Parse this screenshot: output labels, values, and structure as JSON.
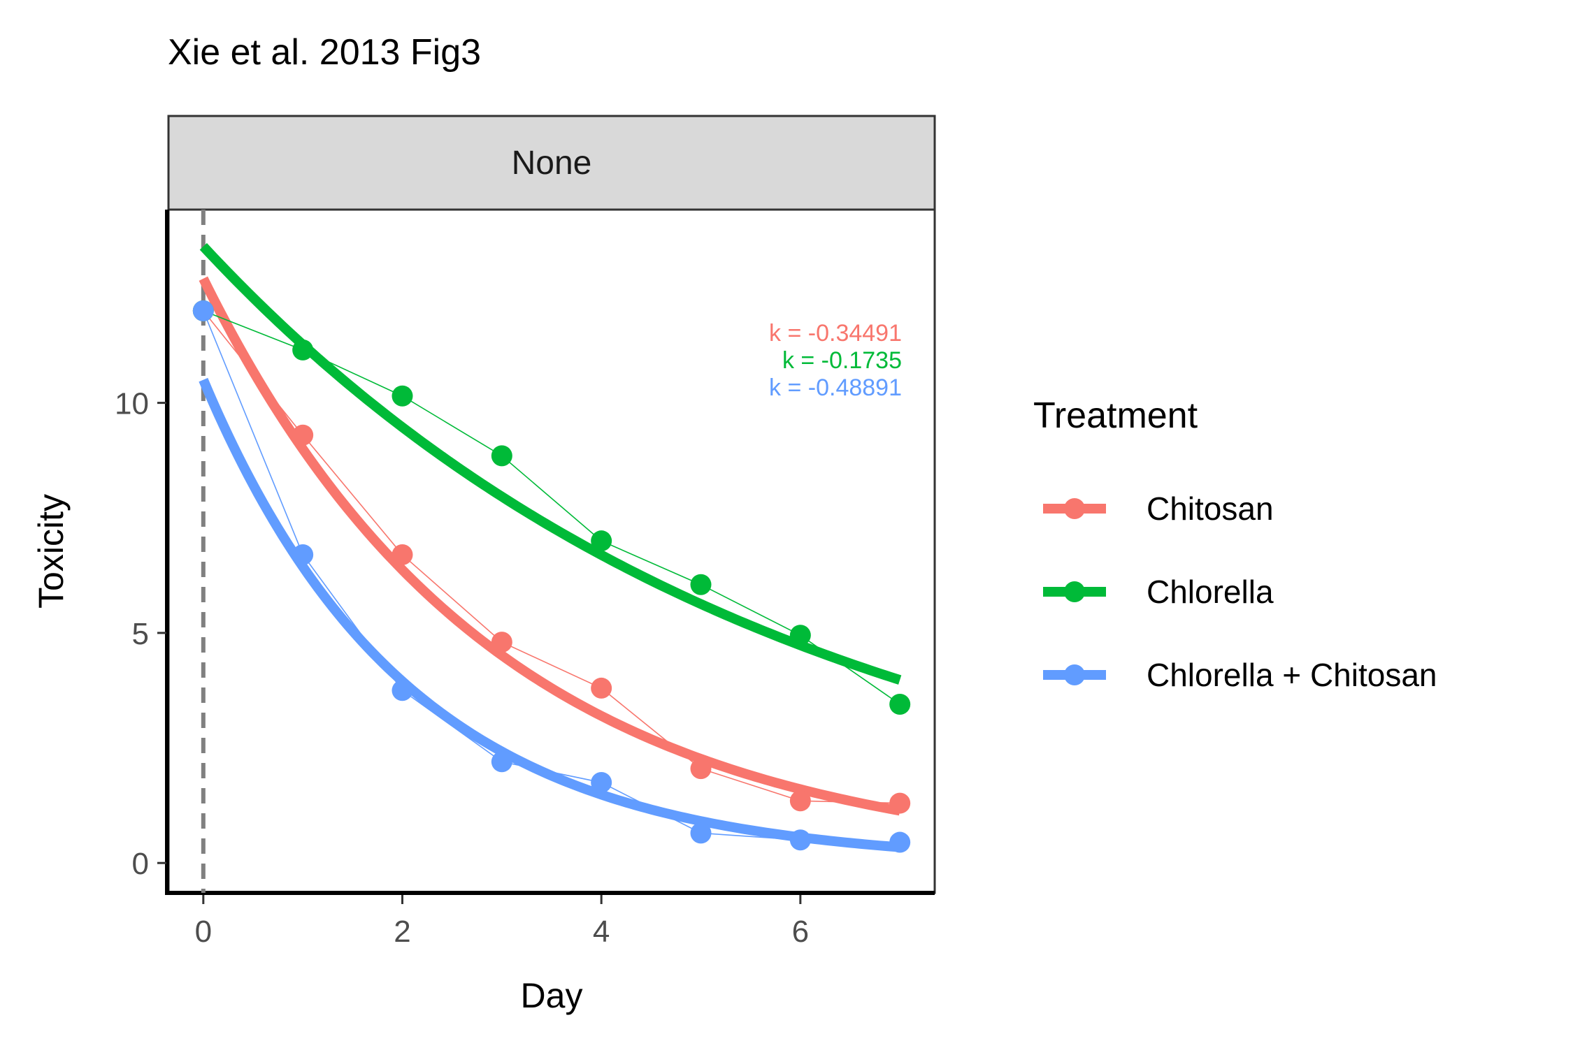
{
  "chart_data": {
    "type": "line",
    "title": "Xie et al. 2013 Fig3",
    "facet_label": "None",
    "xlabel": "Day",
    "ylabel": "Toxicity",
    "xlim": [
      -0.35,
      7.35
    ],
    "ylim": [
      -0.65,
      14.2
    ],
    "x_ticks": [
      0,
      2,
      4,
      6
    ],
    "x_tick_labels": [
      "0",
      "2",
      "4",
      "6"
    ],
    "y_ticks": [
      0,
      5,
      10
    ],
    "y_tick_labels": [
      "0",
      "5",
      "10"
    ],
    "grid": false,
    "legend": {
      "title": "Treatment",
      "position": "right"
    },
    "reference_line": {
      "x": 0,
      "style": "dashed",
      "color": "#808080"
    },
    "series": [
      {
        "name": "Chitosan",
        "color": "#F8766D",
        "x": [
          0,
          1,
          2,
          3,
          4,
          5,
          6,
          7
        ],
        "y": [
          12.0,
          9.3,
          6.7,
          4.8,
          3.8,
          2.05,
          1.35,
          1.3
        ],
        "fit": {
          "a": 12.7,
          "k": -0.34491,
          "label": "k = -0.34491"
        }
      },
      {
        "name": "Chlorella",
        "color": "#00BA38",
        "x": [
          0,
          1,
          2,
          3,
          4,
          5,
          6,
          7
        ],
        "y": [
          12.0,
          11.15,
          10.15,
          8.85,
          7.0,
          6.05,
          4.95,
          3.45
        ],
        "fit": {
          "a": 13.4,
          "k": -0.1735,
          "label": "k = -0.1735"
        }
      },
      {
        "name": "Chlorella + Chitosan",
        "color": "#619CFF",
        "x": [
          0,
          1,
          2,
          3,
          4,
          5,
          6,
          7
        ],
        "y": [
          12.0,
          6.7,
          3.75,
          2.2,
          1.75,
          0.65,
          0.5,
          0.45
        ],
        "fit": {
          "a": 10.5,
          "k": -0.48891,
          "label": "k = -0.48891"
        }
      }
    ]
  }
}
